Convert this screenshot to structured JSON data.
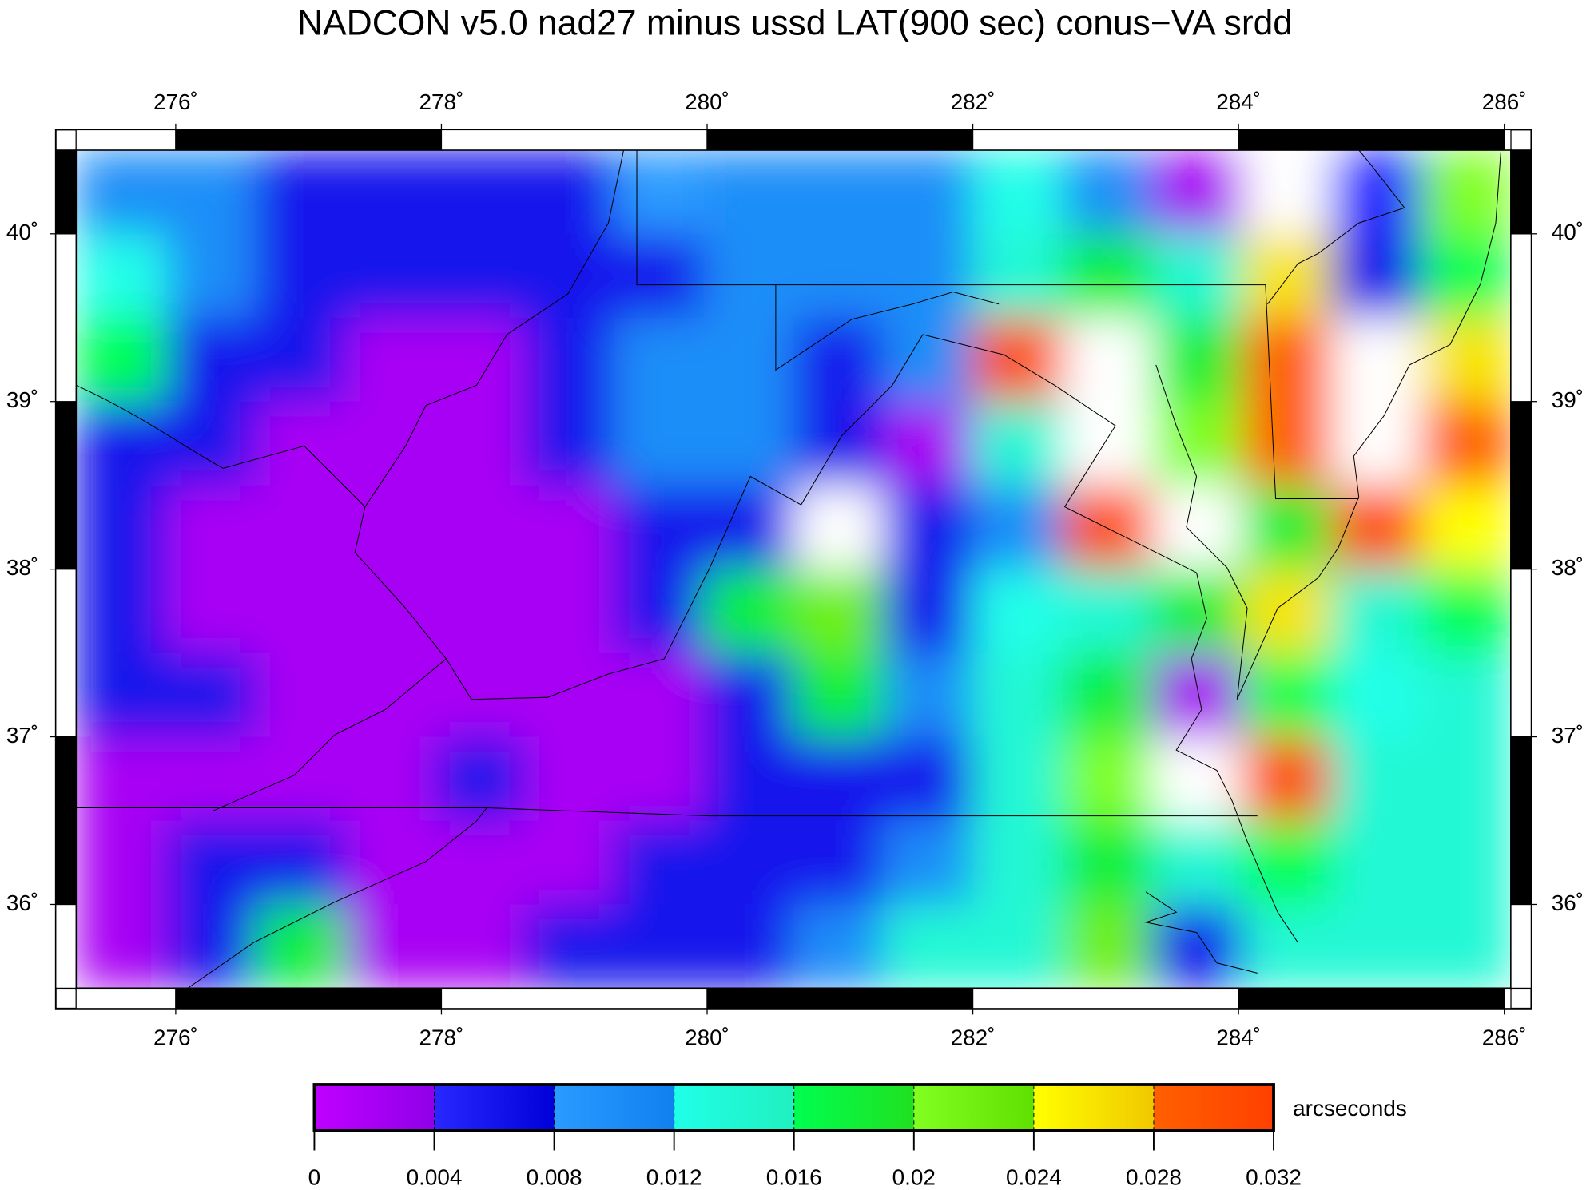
{
  "chart_data": {
    "type": "heatmap",
    "title": "NADCON v5.0 nad27 minus ussd LAT(900 sec) conus−VA srdd",
    "xlim": [
      275.25,
      286.05
    ],
    "ylim": [
      35.5,
      40.5
    ],
    "xticks": [
      {
        "value": 276,
        "label": "276˚"
      },
      {
        "value": 278,
        "label": "278˚"
      },
      {
        "value": 280,
        "label": "280˚"
      },
      {
        "value": 282,
        "label": "282˚"
      },
      {
        "value": 284,
        "label": "284˚"
      },
      {
        "value": 286,
        "label": "286˚"
      }
    ],
    "yticks": [
      {
        "value": 36,
        "label": "36˚"
      },
      {
        "value": 37,
        "label": "37˚"
      },
      {
        "value": 38,
        "label": "38˚"
      },
      {
        "value": 39,
        "label": "39˚"
      },
      {
        "value": 40,
        "label": "40˚"
      }
    ],
    "values": [
      [
        0.01,
        0.01,
        0.006,
        0.006,
        0.006,
        0.006,
        0.008,
        0.01,
        0.01,
        0.01,
        0.012,
        0.01,
        0.002,
        0.034,
        0.004,
        0.02
      ],
      [
        0.012,
        0.01,
        0.006,
        0.006,
        0.006,
        0.006,
        0.006,
        0.01,
        0.01,
        0.01,
        0.014,
        0.018,
        0.014,
        0.026,
        0.006,
        0.016
      ],
      [
        0.016,
        0.006,
        0.006,
        0.002,
        0.002,
        0.006,
        0.01,
        0.01,
        0.006,
        0.01,
        0.03,
        0.034,
        0.018,
        0.028,
        0.034,
        0.026
      ],
      [
        0.006,
        0.006,
        0.002,
        0.002,
        0.002,
        0.006,
        0.01,
        0.01,
        0.006,
        0.002,
        0.014,
        0.034,
        0.02,
        0.028,
        0.034,
        0.028
      ],
      [
        0.006,
        0.002,
        0.002,
        0.002,
        0.002,
        0.002,
        0.006,
        0.006,
        0.034,
        0.006,
        0.01,
        0.03,
        0.034,
        0.018,
        0.03,
        0.024
      ],
      [
        0.006,
        0.002,
        0.002,
        0.002,
        0.002,
        0.002,
        0.006,
        0.018,
        0.022,
        0.006,
        0.012,
        0.014,
        0.018,
        0.026,
        0.014,
        0.016
      ],
      [
        0.006,
        0.006,
        0.002,
        0.002,
        0.002,
        0.002,
        0.002,
        0.006,
        0.018,
        0.01,
        0.014,
        0.018,
        0.002,
        0.016,
        0.012,
        0.014
      ],
      [
        0.002,
        0.002,
        0.002,
        0.002,
        0.006,
        0.002,
        0.002,
        0.006,
        0.006,
        0.006,
        0.014,
        0.02,
        0.034,
        0.03,
        0.014,
        0.014
      ],
      [
        0.002,
        0.006,
        0.006,
        0.002,
        0.002,
        0.002,
        0.006,
        0.006,
        0.006,
        0.01,
        0.014,
        0.018,
        0.014,
        0.016,
        0.014,
        0.014
      ],
      [
        0.002,
        0.006,
        0.018,
        0.002,
        0.002,
        0.006,
        0.006,
        0.006,
        0.01,
        0.014,
        0.014,
        0.022,
        0.006,
        0.014,
        0.014,
        0.014
      ]
    ],
    "colorbar": {
      "label": "arcseconds",
      "ticks": [
        0,
        0.004,
        0.008,
        0.012,
        0.016,
        0.02,
        0.024,
        0.028,
        0.032
      ],
      "colors": [
        [
          "#c000ff",
          "#9000e8"
        ],
        [
          "#2828ff",
          "#0000d8"
        ],
        [
          "#2a9bff",
          "#1080f0"
        ],
        [
          "#20ffe8",
          "#20f0c0"
        ],
        [
          "#00ff50",
          "#20e020"
        ],
        [
          "#80ff20",
          "#60e000"
        ],
        [
          "#ffff00",
          "#f0c800"
        ],
        [
          "#ff6000",
          "#ff4000"
        ]
      ],
      "over_color": "#ffffff"
    }
  }
}
